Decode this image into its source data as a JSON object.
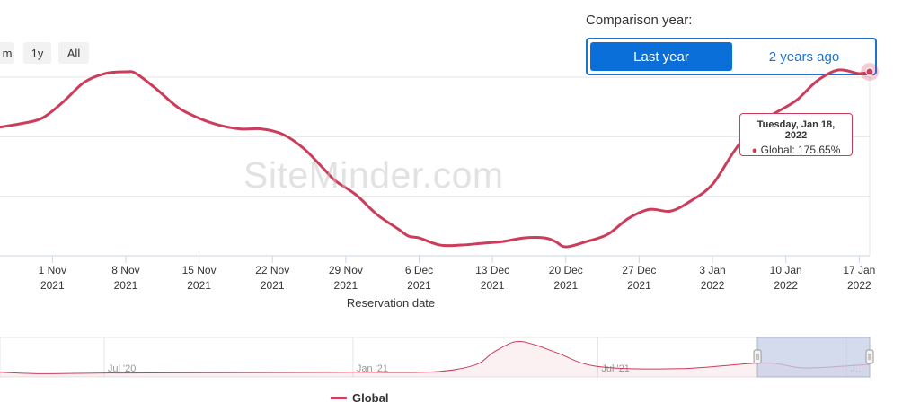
{
  "range_buttons": [
    {
      "label": "m"
    },
    {
      "label": "1y"
    },
    {
      "label": "All"
    }
  ],
  "comparison": {
    "label": "Comparison year:",
    "options": [
      "Last year",
      "2 years ago"
    ],
    "selected": "Last year"
  },
  "watermark": "SiteMinder.com",
  "tooltip": {
    "date": "Tuesday, Jan 18, 2022",
    "series": "Global",
    "value": "175.65%"
  },
  "colors": {
    "series": "#cc3c5b",
    "accent": "#0a6fd8",
    "navigator_selection": "#c5cfe6"
  },
  "chart_data": {
    "type": "line",
    "title": "",
    "xlabel": "Reservation date",
    "ylabel": "",
    "x_ticks": [
      {
        "l1": "1 Nov",
        "l2": "2021"
      },
      {
        "l1": "8 Nov",
        "l2": "2021"
      },
      {
        "l1": "15 Nov",
        "l2": "2021"
      },
      {
        "l1": "22 Nov",
        "l2": "2021"
      },
      {
        "l1": "29 Nov",
        "l2": "2021"
      },
      {
        "l1": "6 Dec",
        "l2": "2021"
      },
      {
        "l1": "13 Dec",
        "l2": "2021"
      },
      {
        "l1": "20 Dec",
        "l2": "2021"
      },
      {
        "l1": "27 Dec",
        "l2": "2021"
      },
      {
        "l1": "3 Jan",
        "l2": "2022"
      },
      {
        "l1": "10 Jan",
        "l2": "2022"
      },
      {
        "l1": "17 Jan",
        "l2": "2022"
      }
    ],
    "grid": true,
    "legend_position": "bottom-center",
    "series": [
      {
        "name": "Global",
        "points": [
          [
            "2021-10-27",
            0.72
          ],
          [
            "2021-10-29",
            0.74
          ],
          [
            "2021-10-31",
            0.77
          ],
          [
            "2021-11-02",
            0.86
          ],
          [
            "2021-11-04",
            0.97
          ],
          [
            "2021-11-06",
            1.02
          ],
          [
            "2021-11-08",
            1.03
          ],
          [
            "2021-11-09",
            1.02
          ],
          [
            "2021-11-11",
            0.93
          ],
          [
            "2021-11-13",
            0.83
          ],
          [
            "2021-11-15",
            0.77
          ],
          [
            "2021-11-17",
            0.73
          ],
          [
            "2021-11-19",
            0.71
          ],
          [
            "2021-11-21",
            0.71
          ],
          [
            "2021-11-23",
            0.68
          ],
          [
            "2021-11-25",
            0.6
          ],
          [
            "2021-11-27",
            0.48
          ],
          [
            "2021-11-28",
            0.42
          ],
          [
            "2021-11-30",
            0.34
          ],
          [
            "2021-12-02",
            0.23
          ],
          [
            "2021-12-04",
            0.15
          ],
          [
            "2021-12-05",
            0.11
          ],
          [
            "2021-12-06",
            0.1
          ],
          [
            "2021-12-08",
            0.06
          ],
          [
            "2021-12-10",
            0.06
          ],
          [
            "2021-12-12",
            0.07
          ],
          [
            "2021-12-14",
            0.08
          ],
          [
            "2021-12-16",
            0.1
          ],
          [
            "2021-12-18",
            0.1
          ],
          [
            "2021-12-19",
            0.08
          ],
          [
            "2021-12-20",
            0.05
          ],
          [
            "2021-12-22",
            0.08
          ],
          [
            "2021-12-24",
            0.12
          ],
          [
            "2021-12-26",
            0.21
          ],
          [
            "2021-12-28",
            0.26
          ],
          [
            "2021-12-30",
            0.25
          ],
          [
            "2022-01-01",
            0.31
          ],
          [
            "2022-01-03",
            0.4
          ],
          [
            "2022-01-05",
            0.58
          ],
          [
            "2022-01-07",
            0.73
          ],
          [
            "2022-01-09",
            0.8
          ],
          [
            "2022-01-11",
            0.87
          ],
          [
            "2022-01-13",
            0.98
          ],
          [
            "2022-01-15",
            1.04
          ],
          [
            "2022-01-17",
            1.02
          ],
          [
            "2022-01-18",
            1.03
          ]
        ]
      }
    ],
    "navigator": {
      "labels": [
        "Jul '20",
        "Jan '21",
        "Jul '21",
        "J..."
      ],
      "points": [
        [
          "2020-04-15",
          0.08
        ],
        [
          "2020-05-15",
          0.04
        ],
        [
          "2020-07-01",
          0.06
        ],
        [
          "2020-10-01",
          0.07
        ],
        [
          "2021-01-01",
          0.08
        ],
        [
          "2021-03-01",
          0.09
        ],
        [
          "2021-04-01",
          0.28
        ],
        [
          "2021-04-15",
          0.64
        ],
        [
          "2021-05-01",
          0.93
        ],
        [
          "2021-05-15",
          0.85
        ],
        [
          "2021-06-01",
          0.62
        ],
        [
          "2021-07-01",
          0.24
        ],
        [
          "2021-09-01",
          0.18
        ],
        [
          "2021-11-01",
          0.34
        ],
        [
          "2021-12-01",
          0.2
        ],
        [
          "2022-01-18",
          0.3
        ]
      ]
    }
  }
}
